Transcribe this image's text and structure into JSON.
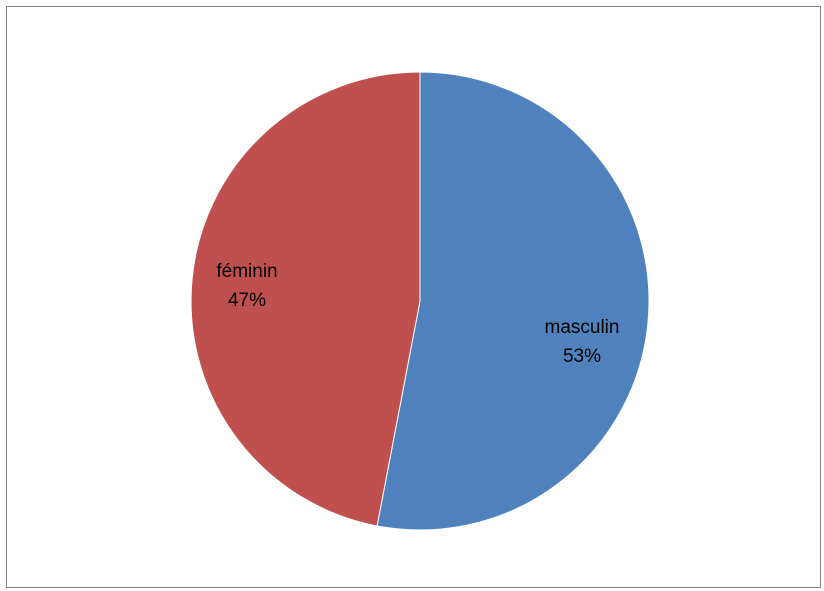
{
  "chart_data": {
    "type": "pie",
    "title": "",
    "legend": "none",
    "slices": [
      {
        "label": "masculin",
        "percent_label": "53%",
        "value": 53,
        "color": "#4f81bd"
      },
      {
        "label": "féminin",
        "percent_label": "47%",
        "value": 47,
        "color": "#c0504d"
      }
    ]
  }
}
